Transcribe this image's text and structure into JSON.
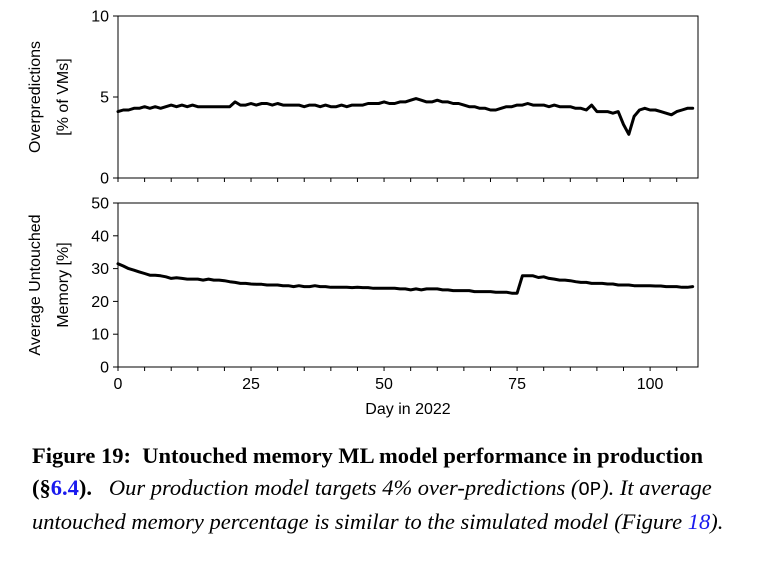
{
  "chart_data": [
    {
      "type": "line",
      "ylabel": [
        "Overpredictions",
        "[% of VMs]"
      ],
      "ylim": [
        0,
        10
      ],
      "yticks": [
        0,
        5,
        10
      ],
      "xlim": [
        0,
        109
      ],
      "xticks": [
        0,
        25,
        50,
        75,
        100
      ],
      "series": [
        {
          "color": "#000000",
          "x": [
            0,
            1,
            2,
            3,
            4,
            5,
            6,
            7,
            8,
            9,
            10,
            11,
            12,
            13,
            14,
            15,
            16,
            17,
            18,
            19,
            20,
            21,
            22,
            23,
            24,
            25,
            26,
            27,
            28,
            29,
            30,
            31,
            32,
            33,
            34,
            35,
            36,
            37,
            38,
            39,
            40,
            41,
            42,
            43,
            44,
            45,
            46,
            47,
            48,
            49,
            50,
            51,
            52,
            53,
            54,
            55,
            56,
            57,
            58,
            59,
            60,
            61,
            62,
            63,
            64,
            65,
            66,
            67,
            68,
            69,
            70,
            71,
            72,
            73,
            74,
            75,
            76,
            77,
            78,
            79,
            80,
            81,
            82,
            83,
            84,
            85,
            86,
            87,
            88,
            89,
            90,
            91,
            92,
            93,
            94,
            95,
            96,
            97,
            98,
            99,
            100,
            101,
            102,
            103,
            104,
            105,
            106,
            107,
            108
          ],
          "y": [
            4.1,
            4.2,
            4.2,
            4.3,
            4.3,
            4.4,
            4.3,
            4.4,
            4.3,
            4.4,
            4.5,
            4.4,
            4.5,
            4.4,
            4.5,
            4.4,
            4.4,
            4.4,
            4.4,
            4.4,
            4.4,
            4.4,
            4.7,
            4.5,
            4.5,
            4.6,
            4.5,
            4.6,
            4.6,
            4.5,
            4.6,
            4.5,
            4.5,
            4.5,
            4.5,
            4.4,
            4.5,
            4.5,
            4.4,
            4.5,
            4.4,
            4.4,
            4.5,
            4.4,
            4.5,
            4.5,
            4.5,
            4.6,
            4.6,
            4.6,
            4.7,
            4.6,
            4.6,
            4.7,
            4.7,
            4.8,
            4.9,
            4.8,
            4.7,
            4.7,
            4.8,
            4.7,
            4.7,
            4.6,
            4.6,
            4.5,
            4.4,
            4.4,
            4.3,
            4.3,
            4.2,
            4.2,
            4.3,
            4.4,
            4.4,
            4.5,
            4.5,
            4.6,
            4.5,
            4.5,
            4.5,
            4.4,
            4.5,
            4.4,
            4.4,
            4.4,
            4.3,
            4.3,
            4.2,
            4.5,
            4.1,
            4.1,
            4.1,
            4.0,
            4.1,
            3.3,
            2.7,
            3.8,
            4.2,
            4.3,
            4.2,
            4.2,
            4.1,
            4.0,
            3.9,
            4.1,
            4.2,
            4.3,
            4.3
          ]
        }
      ]
    },
    {
      "type": "line",
      "ylabel": [
        "Average Untouched",
        "Memory [%]"
      ],
      "xlabel": "Day in 2022",
      "ylim": [
        0,
        50
      ],
      "yticks": [
        0,
        10,
        20,
        30,
        40,
        50
      ],
      "xlim": [
        0,
        109
      ],
      "xticks": [
        0,
        25,
        50,
        75,
        100
      ],
      "series": [
        {
          "color": "#000000",
          "x": [
            0,
            1,
            2,
            3,
            4,
            5,
            6,
            7,
            8,
            9,
            10,
            11,
            12,
            13,
            14,
            15,
            16,
            17,
            18,
            19,
            20,
            21,
            22,
            23,
            24,
            25,
            26,
            27,
            28,
            29,
            30,
            31,
            32,
            33,
            34,
            35,
            36,
            37,
            38,
            39,
            40,
            41,
            42,
            43,
            44,
            45,
            46,
            47,
            48,
            49,
            50,
            51,
            52,
            53,
            54,
            55,
            56,
            57,
            58,
            59,
            60,
            61,
            62,
            63,
            64,
            65,
            66,
            67,
            68,
            69,
            70,
            71,
            72,
            73,
            74,
            75,
            76,
            77,
            78,
            79,
            80,
            81,
            82,
            83,
            84,
            85,
            86,
            87,
            88,
            89,
            90,
            91,
            92,
            93,
            94,
            95,
            96,
            97,
            98,
            99,
            100,
            101,
            102,
            103,
            104,
            105,
            106,
            107,
            108
          ],
          "y": [
            31.5,
            30.8,
            30.0,
            29.5,
            29.0,
            28.5,
            28.0,
            28.0,
            27.8,
            27.5,
            27.0,
            27.2,
            27.0,
            26.8,
            26.8,
            26.8,
            26.5,
            26.8,
            26.5,
            26.5,
            26.3,
            26.0,
            25.8,
            25.5,
            25.5,
            25.3,
            25.2,
            25.2,
            25.0,
            25.0,
            25.0,
            24.8,
            24.8,
            24.5,
            24.8,
            24.5,
            24.5,
            24.8,
            24.5,
            24.5,
            24.3,
            24.3,
            24.3,
            24.3,
            24.2,
            24.3,
            24.2,
            24.2,
            24.0,
            24.0,
            24.0,
            24.0,
            24.0,
            23.8,
            23.8,
            23.5,
            23.8,
            23.5,
            23.8,
            23.8,
            23.8,
            23.5,
            23.5,
            23.3,
            23.3,
            23.3,
            23.3,
            23.0,
            23.0,
            23.0,
            23.0,
            22.8,
            22.8,
            22.8,
            22.5,
            22.5,
            27.8,
            27.8,
            27.8,
            27.3,
            27.5,
            27.0,
            26.8,
            26.5,
            26.5,
            26.3,
            26.0,
            25.8,
            25.8,
            25.5,
            25.5,
            25.5,
            25.3,
            25.3,
            25.0,
            25.0,
            25.0,
            24.8,
            24.8,
            24.8,
            24.8,
            24.7,
            24.7,
            24.5,
            24.5,
            24.5,
            24.3,
            24.3,
            24.5
          ]
        }
      ]
    }
  ],
  "caption": {
    "label": "Figure 19:",
    "title_a": "Untouched memory ML model performance in production (",
    "section_sym": "§",
    "section_ref": "6.4",
    "title_b": ").",
    "body_a": "Our production model targets 4% over-predictions (",
    "code": "OP",
    "body_b": "). It average untouched memory percentage is similar to the simulated model (Figure ",
    "figure_ref": "18",
    "body_c": ")."
  }
}
